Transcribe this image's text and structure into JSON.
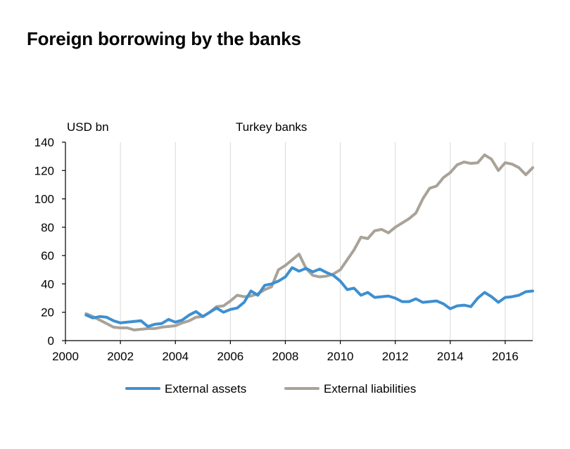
{
  "page": {
    "title": "Foreign borrowing by the banks"
  },
  "chart_data": {
    "type": "line",
    "title": "Turkey banks",
    "ylabel": "USD bn",
    "xlabel": "",
    "xlim": [
      2000,
      2017
    ],
    "ylim": [
      0,
      140
    ],
    "xticks": [
      "2000",
      "2002",
      "2004",
      "2006",
      "2008",
      "2010",
      "2012",
      "2014",
      "2016"
    ],
    "yticks": [
      "0",
      "20",
      "40",
      "60",
      "80",
      "100",
      "120",
      "140"
    ],
    "grid": "vertical",
    "legend_position": "bottom",
    "series": [
      {
        "name": "External assets",
        "color": "#3e8fd0",
        "x": [
          2000.75,
          2001.0,
          2001.25,
          2001.5,
          2001.75,
          2002.0,
          2002.25,
          2002.5,
          2002.75,
          2003.0,
          2003.25,
          2003.5,
          2003.75,
          2004.0,
          2004.25,
          2004.5,
          2004.75,
          2005.0,
          2005.25,
          2005.5,
          2005.75,
          2006.0,
          2006.25,
          2006.5,
          2006.75,
          2007.0,
          2007.25,
          2007.5,
          2007.75,
          2008.0,
          2008.25,
          2008.5,
          2008.75,
          2009.0,
          2009.25,
          2009.5,
          2009.75,
          2010.0,
          2010.25,
          2010.5,
          2010.75,
          2011.0,
          2011.25,
          2011.5,
          2011.75,
          2012.0,
          2012.25,
          2012.5,
          2012.75,
          2013.0,
          2013.25,
          2013.5,
          2013.75,
          2014.0,
          2014.25,
          2014.5,
          2014.75,
          2015.0,
          2015.25,
          2015.5,
          2015.75,
          2016.0,
          2016.25,
          2016.5,
          2016.75,
          2017.0
        ],
        "values": [
          18,
          16,
          17,
          16.5,
          14,
          12.5,
          13,
          13.5,
          14,
          10,
          11.5,
          12,
          15,
          13,
          14.5,
          18,
          20.5,
          17,
          20,
          23,
          20,
          22,
          23,
          27,
          35,
          32,
          39,
          40,
          42,
          45,
          51.5,
          49,
          51,
          48.5,
          50.5,
          48,
          46,
          42,
          36,
          37,
          32,
          34,
          30.5,
          31,
          31.5,
          30,
          27.5,
          27.5,
          29.5,
          27,
          27.5,
          28,
          26,
          22.5,
          24.5,
          25,
          24,
          30,
          34,
          31,
          27,
          30.5,
          31,
          32,
          34.5,
          35
        ]
      },
      {
        "name": "External liabilities",
        "color": "#a9a298",
        "x": [
          2000.75,
          2001.0,
          2001.25,
          2001.5,
          2001.75,
          2002.0,
          2002.25,
          2002.5,
          2002.75,
          2003.0,
          2003.25,
          2003.5,
          2003.75,
          2004.0,
          2004.25,
          2004.5,
          2004.75,
          2005.0,
          2005.25,
          2005.5,
          2005.75,
          2006.0,
          2006.25,
          2006.5,
          2006.75,
          2007.0,
          2007.25,
          2007.5,
          2007.75,
          2008.0,
          2008.25,
          2008.5,
          2008.75,
          2009.0,
          2009.25,
          2009.5,
          2009.75,
          2010.0,
          2010.25,
          2010.5,
          2010.75,
          2011.0,
          2011.25,
          2011.5,
          2011.75,
          2012.0,
          2012.25,
          2012.5,
          2012.75,
          2013.0,
          2013.25,
          2013.5,
          2013.75,
          2014.0,
          2014.25,
          2014.5,
          2014.75,
          2015.0,
          2015.25,
          2015.5,
          2015.75,
          2016.0,
          2016.25,
          2016.5,
          2016.75,
          2017.0
        ],
        "values": [
          19,
          17,
          14.5,
          12,
          9.5,
          9,
          9,
          7.5,
          8,
          8.5,
          8.5,
          9.5,
          10,
          10.5,
          12.5,
          14,
          16.5,
          17,
          20,
          24,
          24.5,
          28,
          32,
          31,
          31.5,
          33,
          36,
          38,
          50,
          53,
          57,
          61,
          51,
          46,
          45,
          45.5,
          47,
          50,
          57,
          64,
          73,
          72,
          77.5,
          78.5,
          76,
          80,
          83,
          86,
          90,
          100,
          107.5,
          109,
          115,
          118.5,
          124,
          126,
          125,
          125.5,
          131,
          128,
          120,
          125.5,
          124.5,
          122,
          117,
          122
        ]
      }
    ]
  }
}
